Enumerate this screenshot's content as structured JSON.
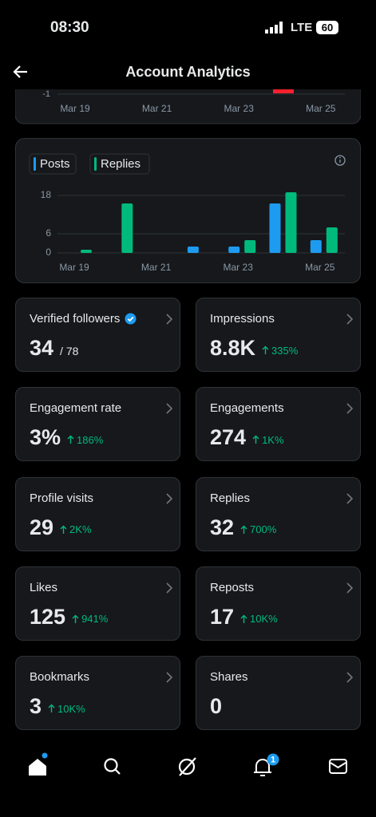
{
  "status_bar": {
    "time": "08:30",
    "network": "LTE",
    "battery": "60"
  },
  "header": {
    "title": "Account Analytics"
  },
  "chart_data": [
    {
      "type": "bar",
      "categories": [
        "Mar 19",
        null,
        "Mar 21",
        null,
        "Mar 23",
        null,
        "Mar 25"
      ],
      "yticks": [
        -1
      ]
    },
    {
      "type": "bar",
      "categories": [
        "Mar 19",
        null,
        "Mar 21",
        null,
        "Mar 23",
        null,
        "Mar 25"
      ],
      "series": [
        {
          "name": "Posts",
          "color": "#1d9bf0",
          "values": [
            0,
            0,
            0,
            2,
            2,
            15.5,
            4
          ]
        },
        {
          "name": "Replies",
          "color": "#00ba7c",
          "values": [
            1,
            15.5,
            0,
            0,
            4,
            19,
            8
          ]
        }
      ],
      "ylim": [
        0,
        19
      ],
      "yticks": [
        0,
        6,
        18
      ],
      "grid": true
    }
  ],
  "cards": [
    {
      "label": "Verified followers",
      "value": "34",
      "total": "/ 78",
      "verified": true
    },
    {
      "label": "Impressions",
      "value": "8.8K",
      "change": "335%"
    },
    {
      "label": "Engagement rate",
      "value": "3%",
      "change": "186%"
    },
    {
      "label": "Engagements",
      "value": "274",
      "change": "1K%"
    },
    {
      "label": "Profile visits",
      "value": "29",
      "change": "2K%"
    },
    {
      "label": "Replies",
      "value": "32",
      "change": "700%"
    },
    {
      "label": "Likes",
      "value": "125",
      "change": "941%"
    },
    {
      "label": "Reposts",
      "value": "17",
      "change": "10K%"
    },
    {
      "label": "Bookmarks",
      "value": "3",
      "change": "10K%"
    },
    {
      "label": "Shares",
      "value": "0"
    }
  ],
  "nav": {
    "notification_count": "1"
  }
}
